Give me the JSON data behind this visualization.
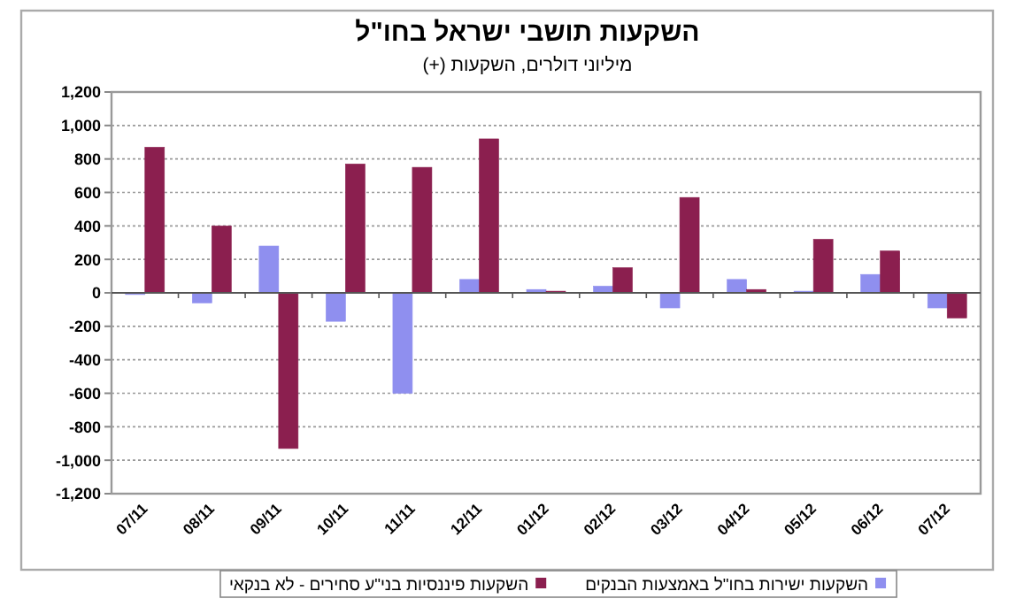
{
  "chart_data": {
    "type": "bar",
    "title": "השקעות תושבי ישראל בחו\"ל",
    "subtitle": "מיליוני דולרים, השקעות (+)",
    "categories": [
      "07/11",
      "08/11",
      "09/11",
      "10/11",
      "11/11",
      "12/11",
      "01/12",
      "02/12",
      "03/12",
      "04/12",
      "05/12",
      "06/12",
      "07/12"
    ],
    "series": [
      {
        "name": "השקעות ישירות בחו\"ל באמצעות הבנקים",
        "color": "#8f8fef",
        "values": [
          -10,
          -60,
          280,
          -170,
          -600,
          80,
          20,
          40,
          -90,
          80,
          10,
          110,
          -90
        ]
      },
      {
        "name": "השקעות פיננסיות בני\"ע סחירים - לא בנקאי",
        "color": "#8b1f4f",
        "values": [
          870,
          400,
          -930,
          770,
          750,
          920,
          10,
          150,
          570,
          20,
          320,
          250,
          -150
        ]
      }
    ],
    "ylim": [
      -1200,
      1200
    ],
    "yticks": [
      {
        "value": -1200,
        "label": "-1,200"
      },
      {
        "value": -1000,
        "label": "-1,000"
      },
      -800,
      -600,
      -400,
      -200,
      0,
      200,
      400,
      600,
      800,
      {
        "value": 1000,
        "label": "1,000"
      },
      {
        "value": 1200,
        "label": "1,200"
      }
    ],
    "grid": "y",
    "legend": "bottom"
  }
}
